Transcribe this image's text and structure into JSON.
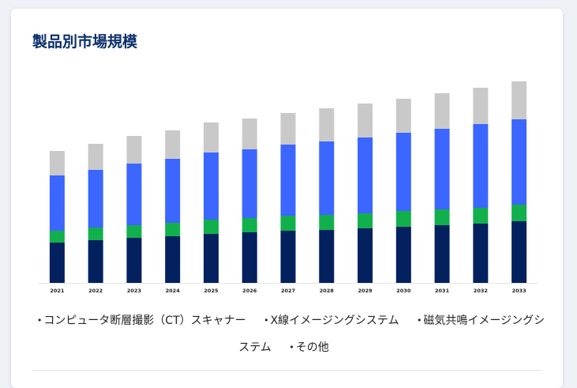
{
  "header": {
    "title": "製品別市場規模"
  },
  "colors": {
    "bottom": "#03205f",
    "green": "#12b04c",
    "blue": "#3b66ff",
    "gray": "#c9c9c9"
  },
  "chart_data": {
    "type": "bar",
    "stacked": true,
    "title": "",
    "xlabel": "",
    "ylabel": "",
    "categories": [
      "2021",
      "2022",
      "2023",
      "2024",
      "2025",
      "2026",
      "2027",
      "2028",
      "2029",
      "2030",
      "2031",
      "2032",
      "2033"
    ],
    "series": [
      {
        "name": "コンピュータ断層撮影（CT）スキャナー",
        "color": "#03205f",
        "values": [
          51,
          54,
          57,
          59,
          62,
          64,
          66,
          67,
          69,
          71,
          73,
          75,
          78
        ]
      },
      {
        "name": "X線イメージングシステム",
        "color": "#12b04c",
        "values": [
          15,
          16,
          16,
          17,
          18,
          18,
          19,
          19,
          19,
          20,
          20,
          20,
          21
        ]
      },
      {
        "name": "磁気共鳴イメージングシステム",
        "color": "#3b66ff",
        "values": [
          70,
          73,
          78,
          81,
          85,
          87,
          90,
          93,
          96,
          99,
          102,
          106,
          108
        ]
      },
      {
        "name": "その他",
        "color": "#c9c9c9",
        "values": [
          31,
          33,
          35,
          36,
          38,
          39,
          40,
          42,
          43,
          43,
          45,
          46,
          48
        ]
      }
    ],
    "ylim": [
      0,
      260
    ],
    "grid": false,
    "legend_position": "bottom"
  }
}
